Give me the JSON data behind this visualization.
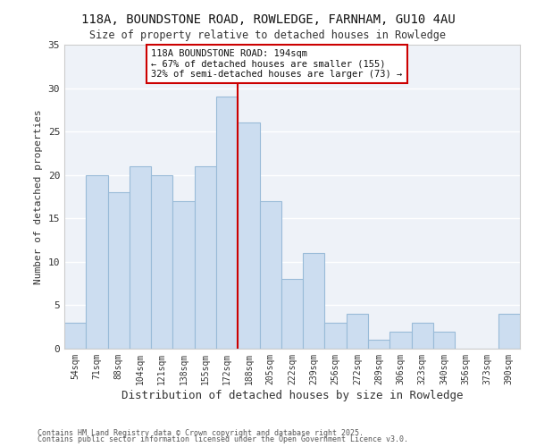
{
  "title_line1": "118A, BOUNDSTONE ROAD, ROWLEDGE, FARNHAM, GU10 4AU",
  "title_line2": "Size of property relative to detached houses in Rowledge",
  "xlabel": "Distribution of detached houses by size in Rowledge",
  "ylabel": "Number of detached properties",
  "categories": [
    "54sqm",
    "71sqm",
    "88sqm",
    "104sqm",
    "121sqm",
    "138sqm",
    "155sqm",
    "172sqm",
    "188sqm",
    "205sqm",
    "222sqm",
    "239sqm",
    "256sqm",
    "272sqm",
    "289sqm",
    "306sqm",
    "323sqm",
    "340sqm",
    "356sqm",
    "373sqm",
    "390sqm"
  ],
  "values": [
    3,
    20,
    18,
    21,
    20,
    17,
    21,
    29,
    26,
    17,
    8,
    11,
    3,
    4,
    1,
    2,
    3,
    2,
    0,
    0,
    4
  ],
  "bar_color": "#ccddf0",
  "bar_edge_color": "#99bbd8",
  "vline_x_index": 8,
  "vline_color": "#cc0000",
  "annotation_line1": "118A BOUNDSTONE ROAD: 194sqm",
  "annotation_line2": "← 67% of detached houses are smaller (155)",
  "annotation_line3": "32% of semi-detached houses are larger (73) →",
  "annotation_box_color": "#cc0000",
  "ylim": [
    0,
    35
  ],
  "yticks": [
    0,
    5,
    10,
    15,
    20,
    25,
    30,
    35
  ],
  "background_color": "#ffffff",
  "plot_bg_color": "#eef2f8",
  "grid_color": "#ffffff",
  "footer_line1": "Contains HM Land Registry data © Crown copyright and database right 2025.",
  "footer_line2": "Contains public sector information licensed under the Open Government Licence v3.0."
}
